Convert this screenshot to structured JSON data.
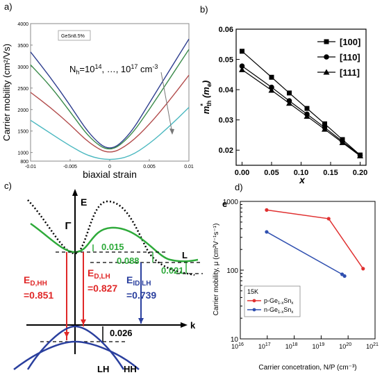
{
  "panels": {
    "a": {
      "label": "a)"
    },
    "b": {
      "label": "b)"
    },
    "c": {
      "label": "c)"
    },
    "d": {
      "label": "d)"
    }
  },
  "chart_data": [
    {
      "type": "line",
      "panel": "a",
      "xlabel": "biaxial strain",
      "ylabel": "Carrier mobility (cm²/Vs)",
      "xlim": [
        -0.01,
        0.01
      ],
      "ylim": [
        800,
        4000
      ],
      "x_ticks": [
        "-0.01",
        "-0.005",
        "0",
        "0.005",
        "0.01"
      ],
      "y_ticks": [
        "800",
        "1000",
        "1500",
        "2000",
        "2500",
        "3000",
        "3500",
        "4000"
      ],
      "legend": "GeSn8.5%",
      "annotation": {
        "prefix": "N",
        "sub": "h",
        "text": "=10",
        "e1": "14",
        "mid": ", …, 10",
        "e2": "17",
        "unit": " cm",
        "e3": "-3"
      },
      "series": [
        {
          "color": "#2f3f8f",
          "x": [
            -0.01,
            -0.0075,
            -0.005,
            -0.0025,
            0,
            0.0025,
            0.005,
            0.0075,
            0.01
          ],
          "y": [
            3340,
            2750,
            2100,
            1400,
            1010,
            1400,
            2150,
            2900,
            3640
          ]
        },
        {
          "color": "#3a8a4a",
          "x": [
            -0.01,
            -0.0075,
            -0.005,
            -0.0025,
            0,
            0.0025,
            0.005,
            0.0075,
            0.01
          ],
          "y": [
            3040,
            2550,
            1950,
            1320,
            1000,
            1350,
            2000,
            2700,
            3400
          ]
        },
        {
          "color": "#b24b4b",
          "x": [
            -0.01,
            -0.0075,
            -0.005,
            -0.0025,
            0,
            0.0025,
            0.005,
            0.0075,
            0.01
          ],
          "y": [
            2400,
            2050,
            1650,
            1200,
            950,
            1200,
            1650,
            2200,
            2800
          ]
        },
        {
          "color": "#4bb8c0",
          "x": [
            -0.01,
            -0.0075,
            -0.005,
            -0.0025,
            0,
            0.0025,
            0.005,
            0.0075,
            0.01
          ],
          "y": [
            1750,
            1450,
            1150,
            900,
            820,
            900,
            1200,
            1600,
            2050
          ]
        }
      ]
    },
    {
      "type": "line",
      "panel": "b",
      "xlabel": "x",
      "ylabel_main": "m",
      "ylabel_sup": "*",
      "ylabel_sub": "th",
      "ylabel_unit": " (m",
      "ylabel_unit_sub": "e",
      "ylabel_close": ")",
      "xlim": [
        0,
        0.2
      ],
      "ylim": [
        0.015,
        0.06
      ],
      "x_ticks": [
        "0.00",
        "0.05",
        "0.10",
        "0.15",
        "0.20"
      ],
      "y_ticks": [
        "0.02",
        "0.03",
        "0.04",
        "0.05",
        "0.06"
      ],
      "series": [
        {
          "name": "[100]",
          "marker": "square",
          "x": [
            0,
            0.05,
            0.08,
            0.11,
            0.14,
            0.17,
            0.2
          ],
          "y": [
            0.0527,
            0.0441,
            0.0389,
            0.0338,
            0.0287,
            0.0235,
            0.0184
          ]
        },
        {
          "name": "[110]",
          "marker": "circle",
          "x": [
            0,
            0.05,
            0.08,
            0.11,
            0.14,
            0.17,
            0.2
          ],
          "y": [
            0.0478,
            0.0408,
            0.0363,
            0.0319,
            0.0275,
            0.0229,
            0.0183
          ]
        },
        {
          "name": "[111]",
          "marker": "triangle",
          "x": [
            0,
            0.05,
            0.08,
            0.11,
            0.14,
            0.17,
            0.2
          ],
          "y": [
            0.0466,
            0.0398,
            0.0355,
            0.0312,
            0.0269,
            0.0225,
            0.0181
          ]
        }
      ]
    },
    {
      "type": "diagram",
      "panel": "c",
      "labels": {
        "E": "E",
        "Gamma": "Γ",
        "L": "L",
        "k": "k",
        "LH": "LH",
        "HH": "HH",
        "v015": "0.015",
        "v088": "0.088",
        "v021": "0.021",
        "v026": "0.026",
        "edhh": "E",
        "edhh_sub": "D,HH",
        "edhh_val": "=0.851",
        "edlh": "E",
        "edlh_sub": "D,LH",
        "edlh_val": "=0.827",
        "eidlh": "E",
        "eidlh_sub": "ID,LH",
        "eidlh_val": "=0.739"
      }
    },
    {
      "type": "line",
      "panel": "d",
      "title": "e",
      "xlabel": "Carrier concetration, N/P (cm⁻³)",
      "ylabel": "Carrier mobility, μ (cm²V⁻¹s⁻¹)",
      "xscale": "log",
      "yscale": "log",
      "xlim": [
        1e+16,
        1e+21
      ],
      "ylim": [
        10,
        1000
      ],
      "x_ticks": [
        {
          "b": "10",
          "e": "16"
        },
        {
          "b": "10",
          "e": "17"
        },
        {
          "b": "10",
          "e": "18"
        },
        {
          "b": "10",
          "e": "19"
        },
        {
          "b": "10",
          "e": "20"
        },
        {
          "b": "10",
          "e": "21"
        }
      ],
      "y_ticks": [
        "10",
        "100",
        "1000"
      ],
      "legend_title": "15K",
      "series": [
        {
          "name_a": "p-Ge",
          "name_sub": "1-x",
          "name_b": "Sn",
          "name_sub2": "x",
          "color": "#e03030",
          "x": [
            9.5e+16,
            1.9e+19,
            3.6e+20
          ],
          "y": [
            750,
            560,
            105
          ]
        },
        {
          "name_a": "n-Ge",
          "name_sub": "1-x",
          "name_b": "Sn",
          "name_sub2": "x",
          "color": "#3050b0",
          "x": [
            9.5e+16,
            6e+19,
            7.4e+19
          ],
          "y": [
            360,
            87,
            82
          ]
        }
      ]
    }
  ]
}
